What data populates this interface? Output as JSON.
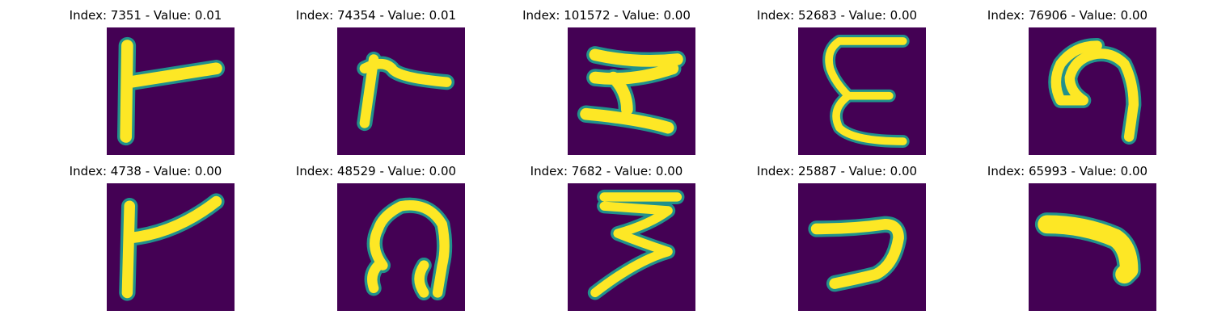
{
  "panels": [
    {
      "title": "Index: 7351 - Value: 0.01",
      "glyph": "glyph-1"
    },
    {
      "title": "Index: 74354 - Value: 0.01",
      "glyph": "glyph-2"
    },
    {
      "title": "Index: 101572 - Value: 0.00",
      "glyph": "glyph-3"
    },
    {
      "title": "Index: 52683 - Value: 0.00",
      "glyph": "glyph-4"
    },
    {
      "title": "Index: 76906 - Value: 0.00",
      "glyph": "glyph-5"
    },
    {
      "title": "Index: 4738 - Value: 0.00",
      "glyph": "glyph-6"
    },
    {
      "title": "Index: 48529 - Value: 0.00",
      "glyph": "glyph-7"
    },
    {
      "title": "Index: 7682 - Value: 0.00",
      "glyph": "glyph-8"
    },
    {
      "title": "Index: 25887 - Value: 0.00",
      "glyph": "glyph-9"
    },
    {
      "title": "Index: 65993 - Value: 0.00",
      "glyph": "glyph-10"
    }
  ],
  "colors": {
    "background": "#440154",
    "stroke_core": "#fde725",
    "stroke_edge": "#21918c",
    "stroke_mid": "#5ec962"
  }
}
